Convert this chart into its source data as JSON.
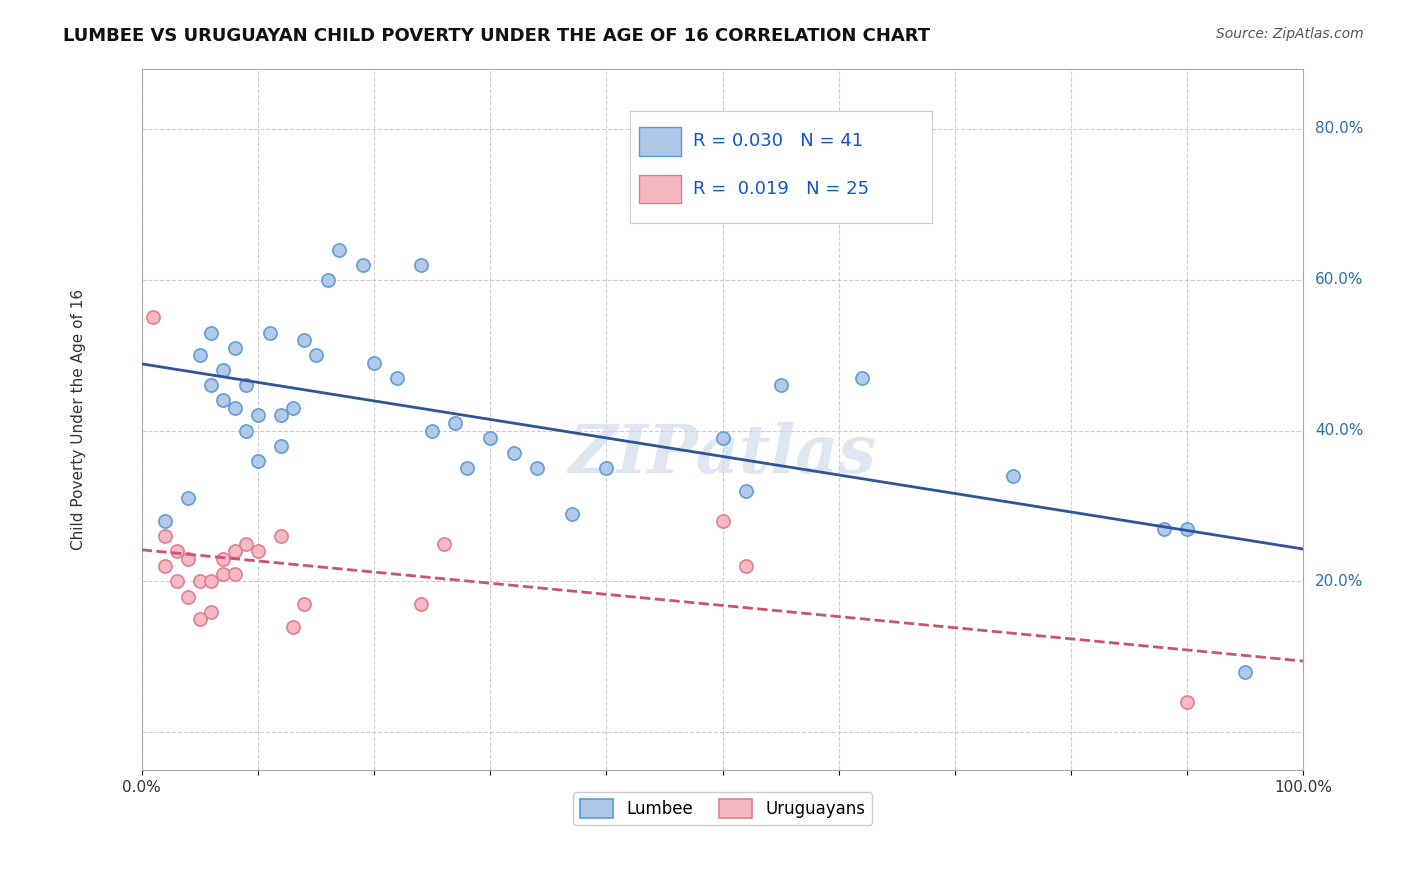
{
  "title": "LUMBEE VS URUGUAYAN CHILD POVERTY UNDER THE AGE OF 16 CORRELATION CHART",
  "source": "Source: ZipAtlas.com",
  "ylabel": "Child Poverty Under the Age of 16",
  "xlim": [
    0.0,
    1.0
  ],
  "ylim": [
    -0.05,
    0.88
  ],
  "xticks": [
    0.0,
    0.1,
    0.2,
    0.3,
    0.4,
    0.5,
    0.6,
    0.7,
    0.8,
    0.9,
    1.0
  ],
  "xtick_labels": [
    "0.0%",
    "",
    "",
    "",
    "",
    "",
    "",
    "",
    "",
    "",
    "100.0%"
  ],
  "ytick_positions": [
    0.0,
    0.2,
    0.4,
    0.6,
    0.8
  ],
  "ytick_labels": [
    "",
    "20.0%",
    "40.0%",
    "60.0%",
    "80.0%"
  ],
  "lumbee_x": [
    0.02,
    0.04,
    0.05,
    0.06,
    0.06,
    0.07,
    0.07,
    0.08,
    0.08,
    0.09,
    0.09,
    0.1,
    0.1,
    0.11,
    0.12,
    0.12,
    0.13,
    0.14,
    0.15,
    0.16,
    0.17,
    0.19,
    0.2,
    0.22,
    0.24,
    0.25,
    0.27,
    0.28,
    0.3,
    0.32,
    0.34,
    0.37,
    0.4,
    0.5,
    0.52,
    0.55,
    0.62,
    0.75,
    0.88,
    0.9,
    0.95
  ],
  "lumbee_y": [
    0.28,
    0.31,
    0.5,
    0.46,
    0.53,
    0.44,
    0.48,
    0.43,
    0.51,
    0.4,
    0.46,
    0.36,
    0.42,
    0.53,
    0.38,
    0.42,
    0.43,
    0.52,
    0.5,
    0.6,
    0.64,
    0.62,
    0.49,
    0.47,
    0.62,
    0.4,
    0.41,
    0.35,
    0.39,
    0.37,
    0.35,
    0.29,
    0.35,
    0.39,
    0.32,
    0.46,
    0.47,
    0.34,
    0.27,
    0.27,
    0.08
  ],
  "uruguayan_x": [
    0.01,
    0.02,
    0.02,
    0.03,
    0.03,
    0.04,
    0.04,
    0.05,
    0.05,
    0.06,
    0.06,
    0.07,
    0.07,
    0.08,
    0.08,
    0.09,
    0.1,
    0.12,
    0.13,
    0.14,
    0.24,
    0.26,
    0.5,
    0.52,
    0.9
  ],
  "uruguayan_y": [
    0.55,
    0.22,
    0.26,
    0.2,
    0.24,
    0.18,
    0.23,
    0.15,
    0.2,
    0.16,
    0.2,
    0.21,
    0.23,
    0.24,
    0.21,
    0.25,
    0.24,
    0.26,
    0.14,
    0.17,
    0.17,
    0.25,
    0.28,
    0.22,
    0.04
  ],
  "lumbee_color": "#aec6e8",
  "lumbee_edge_color": "#5b9bd5",
  "uruguayan_color": "#f4b8c1",
  "uruguayan_edge_color": "#e07b8e",
  "lumbee_line_color": "#2f5597",
  "uruguayan_line_color": "#c9546c",
  "R_lumbee": "0.030",
  "N_lumbee": "41",
  "R_uruguayan": "0.019",
  "N_uruguayan": "25",
  "watermark": "ZIPatlas",
  "background_color": "#ffffff",
  "grid_color": "#c8c8c8",
  "title_fontsize": 13,
  "axis_label_fontsize": 11,
  "tick_fontsize": 11,
  "legend_fontsize": 13,
  "stat_legend_color": "#1155cc"
}
